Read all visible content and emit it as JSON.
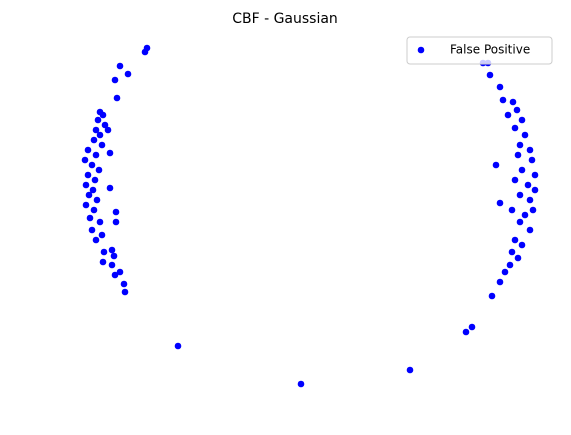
{
  "chart_data": {
    "type": "scatter",
    "title": "CBF - Gaussian",
    "legend": "upper right",
    "axes_visible": false,
    "xlim": [
      -3,
      2.71
    ],
    "ylim": [
      -2.15,
      2.2
    ],
    "series": [
      {
        "name": "False Positive",
        "color": "#0000ff",
        "x": [
          -1.53,
          -1.55,
          -1.8,
          -1.72,
          -1.85,
          -1.83,
          -2.0,
          -1.97,
          -2.02,
          -1.95,
          -2.04,
          -2.0,
          -1.92,
          -2.06,
          -1.98,
          -2.12,
          -2.04,
          -1.9,
          -2.15,
          -2.08,
          -2.01,
          -2.12,
          -2.05,
          -2.14,
          -2.07,
          -1.9,
          -2.11,
          -2.03,
          -2.14,
          -2.06,
          -1.84,
          -2.1,
          -2.0,
          -1.84,
          -2.08,
          -1.98,
          -2.04,
          -1.88,
          -1.96,
          -1.86,
          -1.97,
          -1.88,
          -1.8,
          -1.85,
          -1.76,
          -1.75,
          -1.22,
          1.83,
          1.88,
          1.9,
          2.0,
          2.03,
          2.13,
          2.17,
          2.08,
          2.22,
          2.15,
          2.25,
          2.2,
          2.3,
          2.18,
          1.96,
          2.32,
          2.22,
          2.35,
          2.15,
          2.28,
          2.35,
          2.2,
          2.0,
          2.3,
          2.12,
          2.25,
          2.33,
          2.2,
          2.3,
          2.15,
          2.22,
          2.12,
          2.18,
          2.1,
          2.05,
          2.0,
          1.92,
          1.72,
          1.66,
          1.1,
          0.01
        ],
        "values": [
          1.72,
          1.68,
          1.54,
          1.46,
          1.4,
          1.22,
          1.08,
          1.05,
          1.0,
          0.95,
          0.9,
          0.85,
          0.9,
          0.8,
          0.75,
          0.7,
          0.65,
          0.67,
          0.6,
          0.55,
          0.5,
          0.45,
          0.4,
          0.35,
          0.3,
          0.32,
          0.25,
          0.2,
          0.15,
          0.1,
          0.08,
          0.02,
          -0.02,
          -0.02,
          -0.1,
          -0.15,
          -0.2,
          -0.3,
          -0.32,
          -0.36,
          -0.42,
          -0.45,
          -0.52,
          -0.55,
          -0.64,
          -0.72,
          -1.26,
          1.57,
          1.57,
          1.45,
          1.33,
          1.2,
          1.18,
          1.1,
          1.05,
          1.0,
          0.92,
          0.85,
          0.75,
          0.7,
          0.65,
          0.55,
          0.6,
          0.5,
          0.45,
          0.4,
          0.35,
          0.3,
          0.25,
          0.17,
          0.2,
          0.1,
          0.05,
          0.1,
          -0.02,
          -0.1,
          -0.2,
          -0.25,
          -0.32,
          -0.38,
          -0.45,
          -0.52,
          -0.62,
          -0.76,
          -1.07,
          -1.12,
          -1.5,
          -1.64
        ]
      }
    ]
  }
}
